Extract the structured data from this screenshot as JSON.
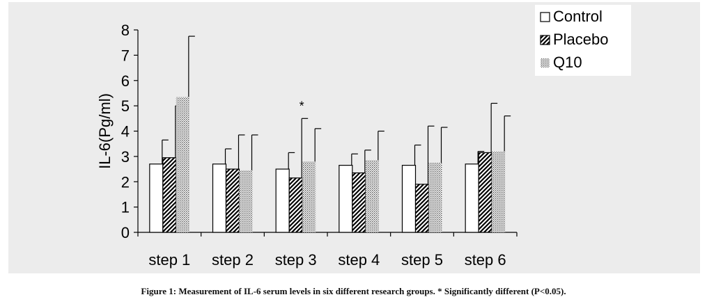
{
  "chart_data": {
    "type": "bar",
    "title": "",
    "xlabel": "",
    "ylabel": "IL-6(Pg/ml)",
    "ylim": [
      0,
      8
    ],
    "yticks": [
      "0",
      "1",
      "2",
      "3",
      "4",
      "5",
      "6",
      "7",
      "8"
    ],
    "categories": [
      "step 1",
      "step 2",
      "step 3",
      "step 4",
      "step 5",
      "step 6"
    ],
    "series": [
      {
        "name": "Control",
        "pattern": "open",
        "values": [
          2.7,
          2.7,
          2.5,
          2.65,
          2.65,
          2.7
        ],
        "errors": [
          0.95,
          0.6,
          0.65,
          0.45,
          0.8,
          0.5
        ]
      },
      {
        "name": "Placebo",
        "pattern": "hatched",
        "values": [
          2.95,
          2.5,
          2.15,
          2.35,
          1.9,
          3.15
        ],
        "errors": [
          2.05,
          1.35,
          2.35,
          0.9,
          2.3,
          1.95
        ]
      },
      {
        "name": "Q10",
        "pattern": "dotted",
        "values": [
          5.35,
          2.45,
          2.8,
          2.85,
          2.75,
          3.2
        ],
        "errors": [
          2.4,
          1.4,
          1.3,
          1.15,
          1.4,
          1.4
        ]
      }
    ],
    "annotations": [
      {
        "text": "*",
        "category": "step 3",
        "series": "Placebo"
      }
    ],
    "legend_position": "top-right",
    "grid": false
  },
  "caption": "Figure 1: Measurement of IL-6 serum levels in six different research groups. * Significantly different (P<0.05)."
}
